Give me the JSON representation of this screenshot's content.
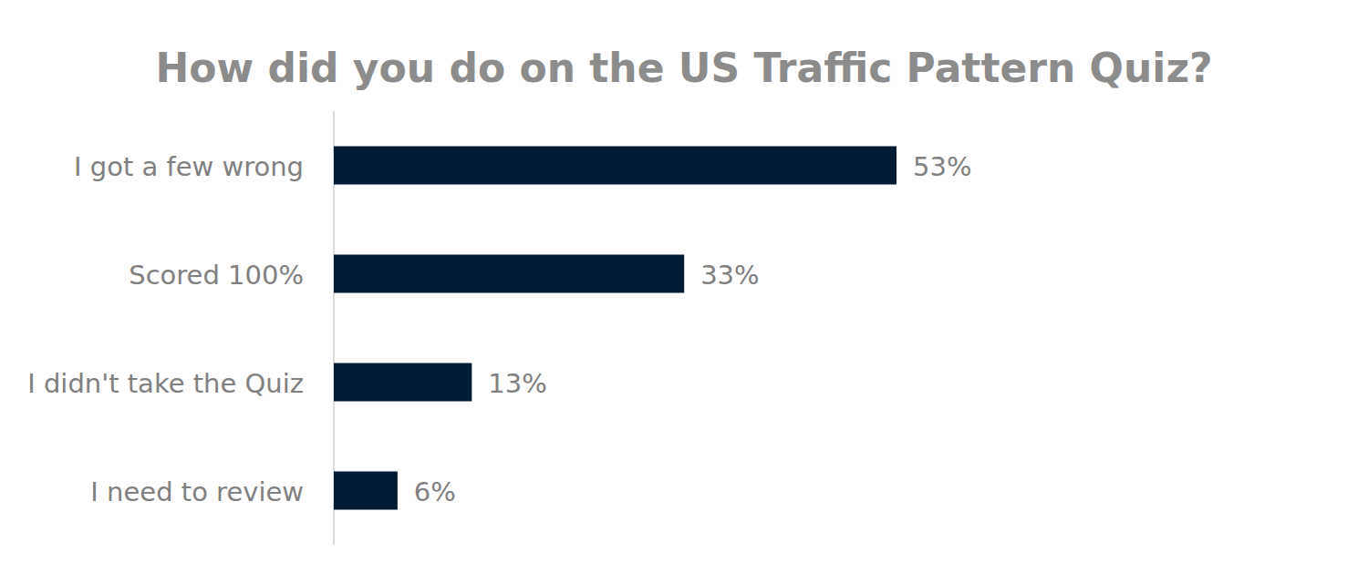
{
  "chart_data": {
    "type": "bar",
    "title": "How did you do on the US Traffic Pattern Quiz?",
    "orientation": "horizontal",
    "categories": [
      "I got a few wrong",
      "Scored 100%",
      "I didn't take the Quiz",
      "I need to review"
    ],
    "values": [
      53,
      33,
      13,
      6
    ],
    "value_labels": [
      "53%",
      "33%",
      "13%",
      "6%"
    ],
    "data_labels": true,
    "color": "#021b35",
    "grid": false,
    "tick_labels": "y"
  }
}
